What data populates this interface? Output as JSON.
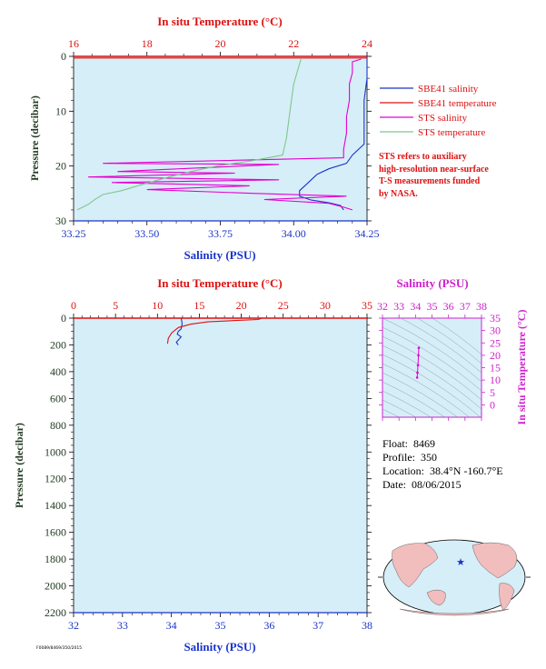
{
  "colors": {
    "plot_bg": "#d6eef8",
    "salinity": "#1a35c8",
    "temperature": "#dd1111",
    "sts_salinity": "#e400d0",
    "sts_temperature": "#7fc88a",
    "ts_axis": "#cc22cc",
    "pressure_axis": "#223a22"
  },
  "chart_data": [
    {
      "type": "line",
      "panel": "near-surface",
      "xlabel": "Salinity (PSU)",
      "x2label": "In situ Temperature (°C)",
      "ylabel": "Pressure (decibar)",
      "xlim": [
        33.25,
        34.25
      ],
      "x2lim": [
        16,
        24
      ],
      "ylim": [
        30,
        0
      ],
      "x_ticks": [
        "33.25",
        "33.50",
        "33.75",
        "34.00",
        "34.25"
      ],
      "x2_ticks": [
        "16",
        "18",
        "20",
        "22",
        "24"
      ],
      "y_ticks": [
        "0",
        "10",
        "20",
        "30"
      ],
      "legend": [
        "SBE41 salinity",
        "SBE41 temperature",
        "STS salinity",
        "STS temperature"
      ],
      "legend_position": "right",
      "note": [
        "STS refers to auxiliary",
        "high-resolution near-surface",
        "T-S measurements funded",
        "by NASA."
      ],
      "series": [
        {
          "name": "SBE41 salinity",
          "axis": "salinity",
          "points": [
            [
              34.25,
              0
            ],
            [
              34.25,
              4
            ],
            [
              34.24,
              8
            ],
            [
              34.24,
              12
            ],
            [
              34.24,
              16
            ],
            [
              34.2,
              18
            ],
            [
              34.18,
              19.5
            ],
            [
              34.12,
              20.5
            ],
            [
              34.08,
              21.5
            ],
            [
              34.06,
              22.5
            ],
            [
              34.04,
              23.5
            ],
            [
              34.02,
              24.5
            ],
            [
              34.02,
              25.5
            ],
            [
              34.06,
              26.2
            ],
            [
              34.12,
              26.7
            ],
            [
              34.16,
              27.2
            ],
            [
              34.17,
              28
            ]
          ]
        },
        {
          "name": "SBE41 temperature",
          "axis": "temperature",
          "points": [
            [
              16,
              0.3
            ],
            [
              24,
              0.3
            ]
          ]
        },
        {
          "name": "STS salinity",
          "axis": "salinity",
          "points": [
            [
              34.23,
              0.5
            ],
            [
              34.2,
              1
            ],
            [
              34.2,
              3
            ],
            [
              34.19,
              5
            ],
            [
              34.19,
              8
            ],
            [
              34.18,
              11
            ],
            [
              34.18,
              14
            ],
            [
              34.17,
              17
            ],
            [
              34.17,
              18.5
            ],
            [
              33.35,
              19.5
            ],
            [
              33.95,
              19.7
            ],
            [
              33.4,
              21
            ],
            [
              33.8,
              21.3
            ],
            [
              33.3,
              22
            ],
            [
              33.95,
              22.5
            ],
            [
              33.38,
              23
            ],
            [
              33.85,
              23.6
            ],
            [
              33.5,
              24.3
            ],
            [
              33.87,
              25
            ],
            [
              34.18,
              25.5
            ],
            [
              33.9,
              26.1
            ],
            [
              34.12,
              26.8
            ],
            [
              34.17,
              27.5
            ],
            [
              34.2,
              28
            ]
          ]
        },
        {
          "name": "STS temperature",
          "axis": "temperature",
          "points": [
            [
              22.2,
              0.5
            ],
            [
              22.0,
              5
            ],
            [
              21.9,
              10
            ],
            [
              21.8,
              15
            ],
            [
              21.7,
              18
            ],
            [
              20.9,
              19
            ],
            [
              19.9,
              20
            ],
            [
              19.2,
              21
            ],
            [
              18.6,
              22
            ],
            [
              17.8,
              23.5
            ],
            [
              17.3,
              24.5
            ],
            [
              16.8,
              25.2
            ],
            [
              16.6,
              26
            ],
            [
              16.4,
              27
            ],
            [
              16.1,
              28
            ]
          ]
        }
      ]
    },
    {
      "type": "line",
      "panel": "full-profile",
      "xlabel": "Salinity (PSU)",
      "x2label": "In situ Temperature (°C)",
      "ylabel": "Pressure (decibar)",
      "xlim": [
        32,
        38
      ],
      "x2lim": [
        0,
        35
      ],
      "ylim": [
        2200,
        0
      ],
      "x_ticks": [
        "32",
        "33",
        "34",
        "35",
        "36",
        "37",
        "38"
      ],
      "x2_ticks": [
        "0",
        "5",
        "10",
        "15",
        "20",
        "25",
        "30",
        "35"
      ],
      "y_ticks": [
        "0",
        "200",
        "400",
        "600",
        "800",
        "1000",
        "1200",
        "1400",
        "1600",
        "1800",
        "2000",
        "2200"
      ],
      "series": [
        {
          "name": "",
          "axis": "salinity",
          "points": [
            [
              34.2,
              0
            ],
            [
              34.22,
              40
            ],
            [
              34.2,
              80
            ],
            [
              34.14,
              100
            ],
            [
              34.12,
              120
            ],
            [
              34.2,
              140
            ],
            [
              34.15,
              160
            ],
            [
              34.1,
              180
            ],
            [
              34.14,
              200
            ]
          ]
        },
        {
          "name": "",
          "axis": "temperature",
          "points": [
            [
              22.5,
              0
            ],
            [
              22,
              10
            ],
            [
              19,
              18
            ],
            [
              16,
              28
            ],
            [
              14,
              45
            ],
            [
              12.5,
              70
            ],
            [
              11.7,
              110
            ],
            [
              11.3,
              150
            ],
            [
              11.2,
              190
            ]
          ]
        }
      ]
    },
    {
      "type": "scatter",
      "panel": "t-s-diagram",
      "xlabel": "Salinity (PSU)",
      "ylabel": "In situ Temperature (°C)",
      "xlim": [
        32,
        38
      ],
      "ylim": [
        -5,
        35
      ],
      "x_ticks": [
        "32",
        "33",
        "34",
        "35",
        "36",
        "37",
        "38"
      ],
      "y_ticks": [
        "0",
        "5",
        "10",
        "15",
        "20",
        "25",
        "30",
        "35"
      ],
      "series": [
        {
          "name": "",
          "points": [
            [
              34.2,
              23
            ],
            [
              34.18,
              20
            ],
            [
              34.15,
              16
            ],
            [
              34.12,
              13
            ],
            [
              34.1,
              11
            ]
          ]
        }
      ]
    }
  ],
  "float_info": {
    "float_label": "Float:",
    "float_value": "8469",
    "profile_label": "Profile:",
    "profile_value": "350",
    "location_label": "Location:",
    "location_value": "38.4°N  -160.7°E",
    "date_label": "Date:",
    "date_value": "08/06/2015"
  },
  "map": {
    "marker_lon": -160.7,
    "marker_lat": 38.4
  },
  "footer_code": "F0089/8469/350/2015"
}
